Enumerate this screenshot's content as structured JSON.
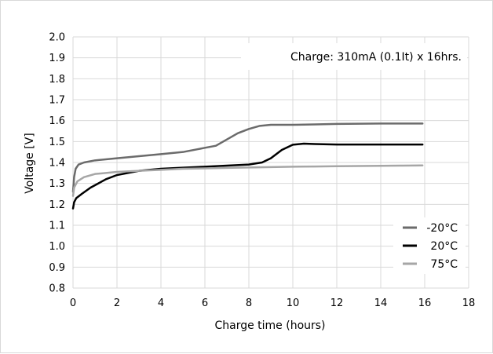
{
  "chart_data": {
    "type": "line",
    "title": "",
    "xlabel": "Charge time (hours)",
    "ylabel": "Voltage [V]",
    "xlim": [
      0,
      18
    ],
    "ylim": [
      0.8,
      2.0
    ],
    "x_ticks": [
      0,
      2,
      4,
      6,
      8,
      10,
      12,
      14,
      16,
      18
    ],
    "y_ticks": [
      0.8,
      0.9,
      1.0,
      1.1,
      1.2,
      1.3,
      1.4,
      1.5,
      1.6,
      1.7,
      1.8,
      1.9,
      2.0
    ],
    "grid": true,
    "legend_position": "bottom-right",
    "annotation": "Charge: 310mA (0.1It) x 16hrs.",
    "series": [
      {
        "name": "-20°C",
        "color": "#6b6b6b",
        "points": [
          [
            0,
            1.26
          ],
          [
            0.05,
            1.33
          ],
          [
            0.12,
            1.37
          ],
          [
            0.25,
            1.39
          ],
          [
            0.5,
            1.4
          ],
          [
            1,
            1.41
          ],
          [
            2,
            1.42
          ],
          [
            3,
            1.43
          ],
          [
            4,
            1.44
          ],
          [
            5,
            1.45
          ],
          [
            6,
            1.47
          ],
          [
            6.5,
            1.48
          ],
          [
            7,
            1.51
          ],
          [
            7.5,
            1.54
          ],
          [
            8,
            1.56
          ],
          [
            8.5,
            1.575
          ],
          [
            9,
            1.58
          ],
          [
            10,
            1.58
          ],
          [
            11,
            1.582
          ],
          [
            12,
            1.584
          ],
          [
            13,
            1.585
          ],
          [
            14,
            1.586
          ],
          [
            15,
            1.586
          ],
          [
            15.9,
            1.586
          ]
        ]
      },
      {
        "name": "20°C",
        "color": "#000000",
        "points": [
          [
            0,
            1.18
          ],
          [
            0.05,
            1.21
          ],
          [
            0.15,
            1.23
          ],
          [
            0.4,
            1.25
          ],
          [
            0.8,
            1.28
          ],
          [
            1.5,
            1.32
          ],
          [
            2,
            1.34
          ],
          [
            3,
            1.36
          ],
          [
            4,
            1.37
          ],
          [
            5,
            1.375
          ],
          [
            6,
            1.38
          ],
          [
            7,
            1.385
          ],
          [
            8,
            1.39
          ],
          [
            8.6,
            1.4
          ],
          [
            9,
            1.42
          ],
          [
            9.5,
            1.46
          ],
          [
            10,
            1.485
          ],
          [
            10.5,
            1.49
          ],
          [
            11,
            1.488
          ],
          [
            12,
            1.486
          ],
          [
            13,
            1.486
          ],
          [
            14,
            1.486
          ],
          [
            15,
            1.486
          ],
          [
            15.9,
            1.486
          ]
        ]
      },
      {
        "name": "75°C",
        "color": "#a6a6a6",
        "points": [
          [
            0,
            1.24
          ],
          [
            0.05,
            1.28
          ],
          [
            0.2,
            1.31
          ],
          [
            0.5,
            1.33
          ],
          [
            1,
            1.345
          ],
          [
            2,
            1.355
          ],
          [
            3,
            1.36
          ],
          [
            4,
            1.365
          ],
          [
            5,
            1.37
          ],
          [
            6,
            1.372
          ],
          [
            7,
            1.374
          ],
          [
            8,
            1.376
          ],
          [
            9,
            1.378
          ],
          [
            10,
            1.38
          ],
          [
            11,
            1.381
          ],
          [
            12,
            1.382
          ],
          [
            13,
            1.383
          ],
          [
            14,
            1.384
          ],
          [
            15,
            1.385
          ],
          [
            15.9,
            1.386
          ]
        ]
      }
    ]
  }
}
